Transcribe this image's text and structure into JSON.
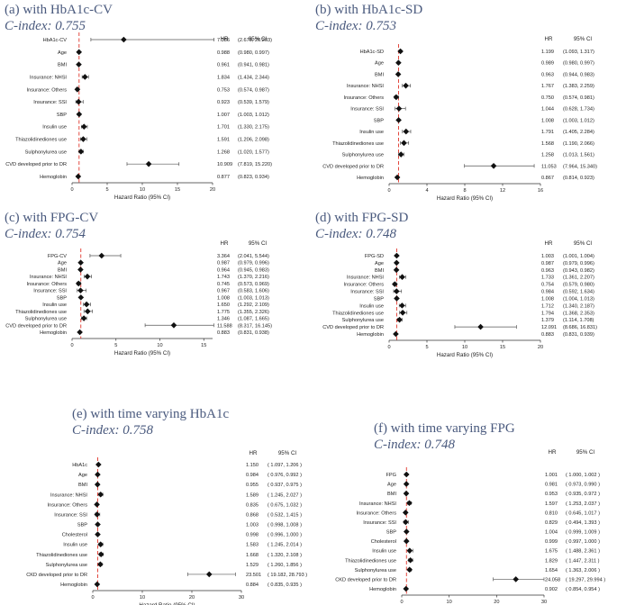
{
  "chart_data": [
    {
      "type": "forest",
      "title": "(a) with HbA1c-CV",
      "subtitle": "C-index: 0.755",
      "xlabel": "Hazard Ratio (95% CI)",
      "hr_header": "HR",
      "ci_header": "95% CI",
      "xlim": [
        0,
        20
      ],
      "xticks": [
        "0",
        "5",
        "10",
        "15",
        "20"
      ],
      "reference_line": 1,
      "rows": [
        {
          "label": "HbA1c-CV",
          "hr": 7.356,
          "lo": 2.679,
          "hi": 20.203,
          "hr_text": "7.356",
          "ci_text": "(2.679, 20.203)"
        },
        {
          "label": "Age",
          "hr": 0.988,
          "lo": 0.98,
          "hi": 0.997,
          "hr_text": "0.988",
          "ci_text": "(0.980, 0.997)"
        },
        {
          "label": "BMI",
          "hr": 0.961,
          "lo": 0.941,
          "hi": 0.981,
          "hr_text": "0.961",
          "ci_text": "(0.941, 0.981)"
        },
        {
          "label": "Insurance: NHSI",
          "hr": 1.834,
          "lo": 1.434,
          "hi": 2.344,
          "hr_text": "1.834",
          "ci_text": "(1.434, 2.344)"
        },
        {
          "label": "Insurance: Others",
          "hr": 0.753,
          "lo": 0.574,
          "hi": 0.987,
          "hr_text": "0.753",
          "ci_text": "(0.574, 0.987)"
        },
        {
          "label": "Insurance: SSI",
          "hr": 0.923,
          "lo": 0.539,
          "hi": 1.579,
          "hr_text": "0.923",
          "ci_text": "(0.539, 1.579)"
        },
        {
          "label": "SBP",
          "hr": 1.007,
          "lo": 1.003,
          "hi": 1.012,
          "hr_text": "1.007",
          "ci_text": "(1.003, 1.012)"
        },
        {
          "label": "Insulin use",
          "hr": 1.701,
          "lo": 1.33,
          "hi": 2.175,
          "hr_text": "1.701",
          "ci_text": "(1.330, 2.175)"
        },
        {
          "label": "Thiazolidinediones use",
          "hr": 1.591,
          "lo": 1.206,
          "hi": 2.098,
          "hr_text": "1.591",
          "ci_text": "(1.206, 2.098)"
        },
        {
          "label": "Sulphonylurea use",
          "hr": 1.268,
          "lo": 1.02,
          "hi": 1.577,
          "hr_text": "1.268",
          "ci_text": "(1.020, 1.577)"
        },
        {
          "label": "CVD developed prior to DR",
          "hr": 10.909,
          "lo": 7.819,
          "hi": 15.22,
          "hr_text": "10.909",
          "ci_text": "(7.819, 15.220)"
        },
        {
          "label": "Hemoglobin",
          "hr": 0.877,
          "lo": 0.823,
          "hi": 0.934,
          "hr_text": "0.877",
          "ci_text": "(0.823, 0.934)"
        }
      ]
    },
    {
      "type": "forest",
      "title": "(b) with HbA1c-SD",
      "subtitle": "C-index: 0.753",
      "xlabel": "Hazard Ratio (95% CI)",
      "hr_header": "HR",
      "ci_header": "95% CI",
      "xlim": [
        0,
        16
      ],
      "xticks": [
        "0",
        "4",
        "8",
        "12",
        "16"
      ],
      "reference_line": 1,
      "rows": [
        {
          "label": "HbA1c-SD",
          "hr": 1.199,
          "lo": 1.093,
          "hi": 1.317,
          "hr_text": "1.199",
          "ci_text": "(1.093, 1.317)"
        },
        {
          "label": "Age",
          "hr": 0.989,
          "lo": 0.98,
          "hi": 0.997,
          "hr_text": "0.989",
          "ci_text": "(0.980, 0.997)"
        },
        {
          "label": "BMI",
          "hr": 0.963,
          "lo": 0.944,
          "hi": 0.983,
          "hr_text": "0.963",
          "ci_text": "(0.944, 0.983)"
        },
        {
          "label": "Insurance: NHSI",
          "hr": 1.767,
          "lo": 1.383,
          "hi": 2.259,
          "hr_text": "1.767",
          "ci_text": "(1.383, 2.259)"
        },
        {
          "label": "Insurance: Others",
          "hr": 0.75,
          "lo": 0.574,
          "hi": 0.981,
          "hr_text": "0.750",
          "ci_text": "(0.574, 0.981)"
        },
        {
          "label": "Insurance: SSI",
          "hr": 1.044,
          "lo": 0.628,
          "hi": 1.734,
          "hr_text": "1.044",
          "ci_text": "(0.628, 1.734)"
        },
        {
          "label": "SBP",
          "hr": 1.008,
          "lo": 1.003,
          "hi": 1.012,
          "hr_text": "1.008",
          "ci_text": "(1.003, 1.012)"
        },
        {
          "label": "Insulin use",
          "hr": 1.791,
          "lo": 1.405,
          "hi": 2.284,
          "hr_text": "1.791",
          "ci_text": "(1.405, 2.284)"
        },
        {
          "label": "Thiazolidinediones use",
          "hr": 1.568,
          "lo": 1.19,
          "hi": 2.066,
          "hr_text": "1.568",
          "ci_text": "(1.190, 2.066)"
        },
        {
          "label": "Sulphonylurea use",
          "hr": 1.258,
          "lo": 1.013,
          "hi": 1.561,
          "hr_text": "1.258",
          "ci_text": "(1.013, 1.561)"
        },
        {
          "label": "CVD developed prior to DR",
          "hr": 11.053,
          "lo": 7.964,
          "hi": 15.34,
          "hr_text": "11.053",
          "ci_text": "(7.964, 15.340)"
        },
        {
          "label": "Hemoglobin",
          "hr": 0.867,
          "lo": 0.814,
          "hi": 0.923,
          "hr_text": "0.867",
          "ci_text": "(0.814, 0.923)"
        }
      ]
    },
    {
      "type": "forest",
      "title": "(c) with FPG-CV",
      "subtitle": "C-index: 0.754",
      "xlabel": "Hazard Ratio (95% CI)",
      "hr_header": "HR",
      "ci_header": "95% CI",
      "xlim": [
        0,
        16
      ],
      "xticks": [
        "0",
        "5",
        "10",
        "15"
      ],
      "reference_line": 1,
      "rows": [
        {
          "label": "FPG-CV",
          "hr": 3.364,
          "lo": 2.041,
          "hi": 5.544,
          "hr_text": "3.364",
          "ci_text": "(2.041, 5.544)"
        },
        {
          "label": "Age",
          "hr": 0.987,
          "lo": 0.979,
          "hi": 0.996,
          "hr_text": "0.987",
          "ci_text": "(0.979, 0.996)"
        },
        {
          "label": "BMI",
          "hr": 0.964,
          "lo": 0.945,
          "hi": 0.983,
          "hr_text": "0.964",
          "ci_text": "(0.945, 0.983)"
        },
        {
          "label": "Insurance: NHSI",
          "hr": 1.743,
          "lo": 1.37,
          "hi": 2.216,
          "hr_text": "1.743",
          "ci_text": "(1.370, 2.216)"
        },
        {
          "label": "Insurance: Others",
          "hr": 0.745,
          "lo": 0.573,
          "hi": 0.969,
          "hr_text": "0.745",
          "ci_text": "(0.573, 0.969)"
        },
        {
          "label": "Insurance: SSI",
          "hr": 0.967,
          "lo": 0.583,
          "hi": 1.606,
          "hr_text": "0.967",
          "ci_text": "(0.583, 1.606)"
        },
        {
          "label": "SBP",
          "hr": 1.008,
          "lo": 1.003,
          "hi": 1.013,
          "hr_text": "1.008",
          "ci_text": "(1.003, 1.013)"
        },
        {
          "label": "Insulin use",
          "hr": 1.65,
          "lo": 1.292,
          "hi": 2.109,
          "hr_text": "1.650",
          "ci_text": "(1.292, 2.109)"
        },
        {
          "label": "Thiazolidinediones use",
          "hr": 1.775,
          "lo": 1.355,
          "hi": 2.326,
          "hr_text": "1.775",
          "ci_text": "(1.355, 2.326)"
        },
        {
          "label": "Sulphonylurea use",
          "hr": 1.346,
          "lo": 1.087,
          "hi": 1.665,
          "hr_text": "1.346",
          "ci_text": "(1.087, 1.665)"
        },
        {
          "label": "CVD developed prior to DR",
          "hr": 11.588,
          "lo": 8.317,
          "hi": 16.145,
          "hr_text": "11.588",
          "ci_text": "(8.317, 16.145)"
        },
        {
          "label": "Hemoglobin",
          "hr": 0.883,
          "lo": 0.831,
          "hi": 0.938,
          "hr_text": "0.883",
          "ci_text": "(0.831, 0.938)"
        }
      ]
    },
    {
      "type": "forest",
      "title": "(d) with FPG-SD",
      "subtitle": "C-index: 0.748",
      "xlabel": "Hazard Ratio (95% CI)",
      "hr_header": "HR",
      "ci_header": "95% CI",
      "xlim": [
        0,
        20
      ],
      "xticks": [
        "0",
        "5",
        "10",
        "15",
        "20"
      ],
      "reference_line": 1,
      "rows": [
        {
          "label": "FPG-SD",
          "hr": 1.003,
          "lo": 1.001,
          "hi": 1.004,
          "hr_text": "1.003",
          "ci_text": "(1.001, 1.004)"
        },
        {
          "label": "Age",
          "hr": 0.987,
          "lo": 0.979,
          "hi": 0.996,
          "hr_text": "0.987",
          "ci_text": "(0.979, 0.996)"
        },
        {
          "label": "BMI",
          "hr": 0.963,
          "lo": 0.943,
          "hi": 0.982,
          "hr_text": "0.963",
          "ci_text": "(0.943, 0.982)"
        },
        {
          "label": "Insurance: NHSI",
          "hr": 1.733,
          "lo": 1.361,
          "hi": 2.207,
          "hr_text": "1.733",
          "ci_text": "(1.361, 2.207)"
        },
        {
          "label": "Insurance: Others",
          "hr": 0.754,
          "lo": 0.579,
          "hi": 0.98,
          "hr_text": "0.754",
          "ci_text": "(0.579, 0.980)"
        },
        {
          "label": "Insurance: SSI",
          "hr": 0.984,
          "lo": 0.592,
          "hi": 1.634,
          "hr_text": "0.984",
          "ci_text": "(0.592, 1.634)"
        },
        {
          "label": "SBP",
          "hr": 1.008,
          "lo": 1.004,
          "hi": 1.013,
          "hr_text": "1.008",
          "ci_text": "(1.004, 1.013)"
        },
        {
          "label": "Insulin use",
          "hr": 1.712,
          "lo": 1.34,
          "hi": 2.187,
          "hr_text": "1.712",
          "ci_text": "(1.340, 2.187)"
        },
        {
          "label": "Thiazolidinediones use",
          "hr": 1.794,
          "lo": 1.368,
          "hi": 2.353,
          "hr_text": "1.794",
          "ci_text": "(1.368, 2.353)"
        },
        {
          "label": "Sulphonylurea use",
          "hr": 1.379,
          "lo": 1.114,
          "hi": 1.708,
          "hr_text": "1.379",
          "ci_text": "(1.114, 1.708)"
        },
        {
          "label": "CVD developed prior to DR",
          "hr": 12.091,
          "lo": 8.686,
          "hi": 16.831,
          "hr_text": "12.091",
          "ci_text": "(8.686, 16.831)"
        },
        {
          "label": "Hemoglobin",
          "hr": 0.883,
          "lo": 0.831,
          "hi": 0.939,
          "hr_text": "0.883",
          "ci_text": "(0.831, 0.939)"
        }
      ]
    },
    {
      "type": "forest",
      "title": "(e) with time varying HbA1c",
      "subtitle": "C-index: 0.758",
      "xlabel": "Hazard Ratio (95% CI)",
      "hr_header": "HR",
      "ci_header": "95% CI",
      "xlim": [
        0,
        30
      ],
      "xticks": [
        "0",
        "10",
        "20",
        "30"
      ],
      "reference_line": 1,
      "rows": [
        {
          "label": "HbA1c",
          "hr": 1.15,
          "lo": 1.097,
          "hi": 1.206,
          "hr_text": "1.150",
          "ci_text": "( 1.097, 1.206 )"
        },
        {
          "label": "Age",
          "hr": 0.984,
          "lo": 0.976,
          "hi": 0.992,
          "hr_text": "0.984",
          "ci_text": "( 0.976, 0.992 )"
        },
        {
          "label": "BMI",
          "hr": 0.955,
          "lo": 0.937,
          "hi": 0.975,
          "hr_text": "0.955",
          "ci_text": "( 0.937, 0.975 )"
        },
        {
          "label": "Insurance: NHSI",
          "hr": 1.589,
          "lo": 1.245,
          "hi": 2.027,
          "hr_text": "1.589",
          "ci_text": "( 1.245, 2.027 )"
        },
        {
          "label": "Insurance: Others",
          "hr": 0.835,
          "lo": 0.675,
          "hi": 1.032,
          "hr_text": "0.835",
          "ci_text": "( 0.675, 1.032 )"
        },
        {
          "label": "Insurance: SSI",
          "hr": 0.868,
          "lo": 0.532,
          "hi": 1.415,
          "hr_text": "0.868",
          "ci_text": "( 0.532, 1.415 )"
        },
        {
          "label": "SBP",
          "hr": 1.003,
          "lo": 0.998,
          "hi": 1.008,
          "hr_text": "1.003",
          "ci_text": "( 0.998, 1.008 )"
        },
        {
          "label": "Cholesterol",
          "hr": 0.998,
          "lo": 0.996,
          "hi": 1.0,
          "hr_text": "0.998",
          "ci_text": "( 0.996, 1.000 )"
        },
        {
          "label": "Insulin use",
          "hr": 1.583,
          "lo": 1.245,
          "hi": 2.014,
          "hr_text": "1.583",
          "ci_text": "( 1.245, 2.014 )"
        },
        {
          "label": "Thiazolidinediones use",
          "hr": 1.668,
          "lo": 1.32,
          "hi": 2.108,
          "hr_text": "1.668",
          "ci_text": "( 1.320, 2.108 )"
        },
        {
          "label": "Sulphonylurea use",
          "hr": 1.529,
          "lo": 1.26,
          "hi": 1.856,
          "hr_text": "1.529",
          "ci_text": "( 1.260, 1.856 )"
        },
        {
          "label": "CKD developed prior to DR",
          "hr": 23.501,
          "lo": 19.182,
          "hi": 28.793,
          "hr_text": "23.501",
          "ci_text": "( 19.182, 28.793 )"
        },
        {
          "label": "Hemoglobin",
          "hr": 0.884,
          "lo": 0.835,
          "hi": 0.935,
          "hr_text": "0.884",
          "ci_text": "( 0.835, 0.935 )"
        }
      ]
    },
    {
      "type": "forest",
      "title": "(f) with time varying FPG",
      "subtitle": "C-index: 0.748",
      "xlabel": "Hazard Ratio (95% CI)",
      "hr_header": "HR",
      "ci_header": "95% CI",
      "xlim": [
        0,
        30
      ],
      "xticks": [
        "0",
        "10",
        "20",
        "30"
      ],
      "reference_line": 1,
      "rows": [
        {
          "label": "FPG",
          "hr": 1.001,
          "lo": 1.0,
          "hi": 1.002,
          "hr_text": "1.001",
          "ci_text": "( 1.000, 1.002 )"
        },
        {
          "label": "Age",
          "hr": 0.981,
          "lo": 0.973,
          "hi": 0.99,
          "hr_text": "0.981",
          "ci_text": "( 0.973, 0.990 )"
        },
        {
          "label": "BMI",
          "hr": 0.953,
          "lo": 0.935,
          "hi": 0.972,
          "hr_text": "0.953",
          "ci_text": "( 0.935, 0.972 )"
        },
        {
          "label": "Insurance: NHSI",
          "hr": 1.597,
          "lo": 1.253,
          "hi": 2.037,
          "hr_text": "1.597",
          "ci_text": "( 1.253, 2.037 )"
        },
        {
          "label": "Insurance: Others",
          "hr": 0.81,
          "lo": 0.645,
          "hi": 1.017,
          "hr_text": "0.810",
          "ci_text": "( 0.645, 1.017 )"
        },
        {
          "label": "Insurance: SSI",
          "hr": 0.829,
          "lo": 0.494,
          "hi": 1.393,
          "hr_text": "0.829",
          "ci_text": "( 0.494, 1.393 )"
        },
        {
          "label": "SBP",
          "hr": 1.004,
          "lo": 0.999,
          "hi": 1.009,
          "hr_text": "1.004",
          "ci_text": "( 0.999, 1.009 )"
        },
        {
          "label": "Cholesterol",
          "hr": 0.999,
          "lo": 0.997,
          "hi": 1.0,
          "hr_text": "0.999",
          "ci_text": "( 0.997, 1.000 )"
        },
        {
          "label": "Insulin use",
          "hr": 1.675,
          "lo": 1.488,
          "hi": 2.361,
          "hr_text": "1.675",
          "ci_text": "( 1.488, 2.361 )"
        },
        {
          "label": "Thiazolidinediones use",
          "hr": 1.829,
          "lo": 1.447,
          "hi": 2.311,
          "hr_text": "1.829",
          "ci_text": "( 1.447, 2.311 )"
        },
        {
          "label": "Sulphonylurea use",
          "hr": 1.654,
          "lo": 1.363,
          "hi": 2.006,
          "hr_text": "1.654",
          "ci_text": "( 1.363, 2.006 )"
        },
        {
          "label": "CKD developed prior to DR",
          "hr": 24.058,
          "lo": 19.297,
          "hi": 29.994,
          "hr_text": "24.058",
          "ci_text": "( 19.297, 29.994 )"
        },
        {
          "label": "Hemoglobin",
          "hr": 0.902,
          "lo": 0.854,
          "hi": 0.954,
          "hr_text": "0.902",
          "ci_text": "( 0.854, 0.954 )"
        }
      ]
    }
  ]
}
